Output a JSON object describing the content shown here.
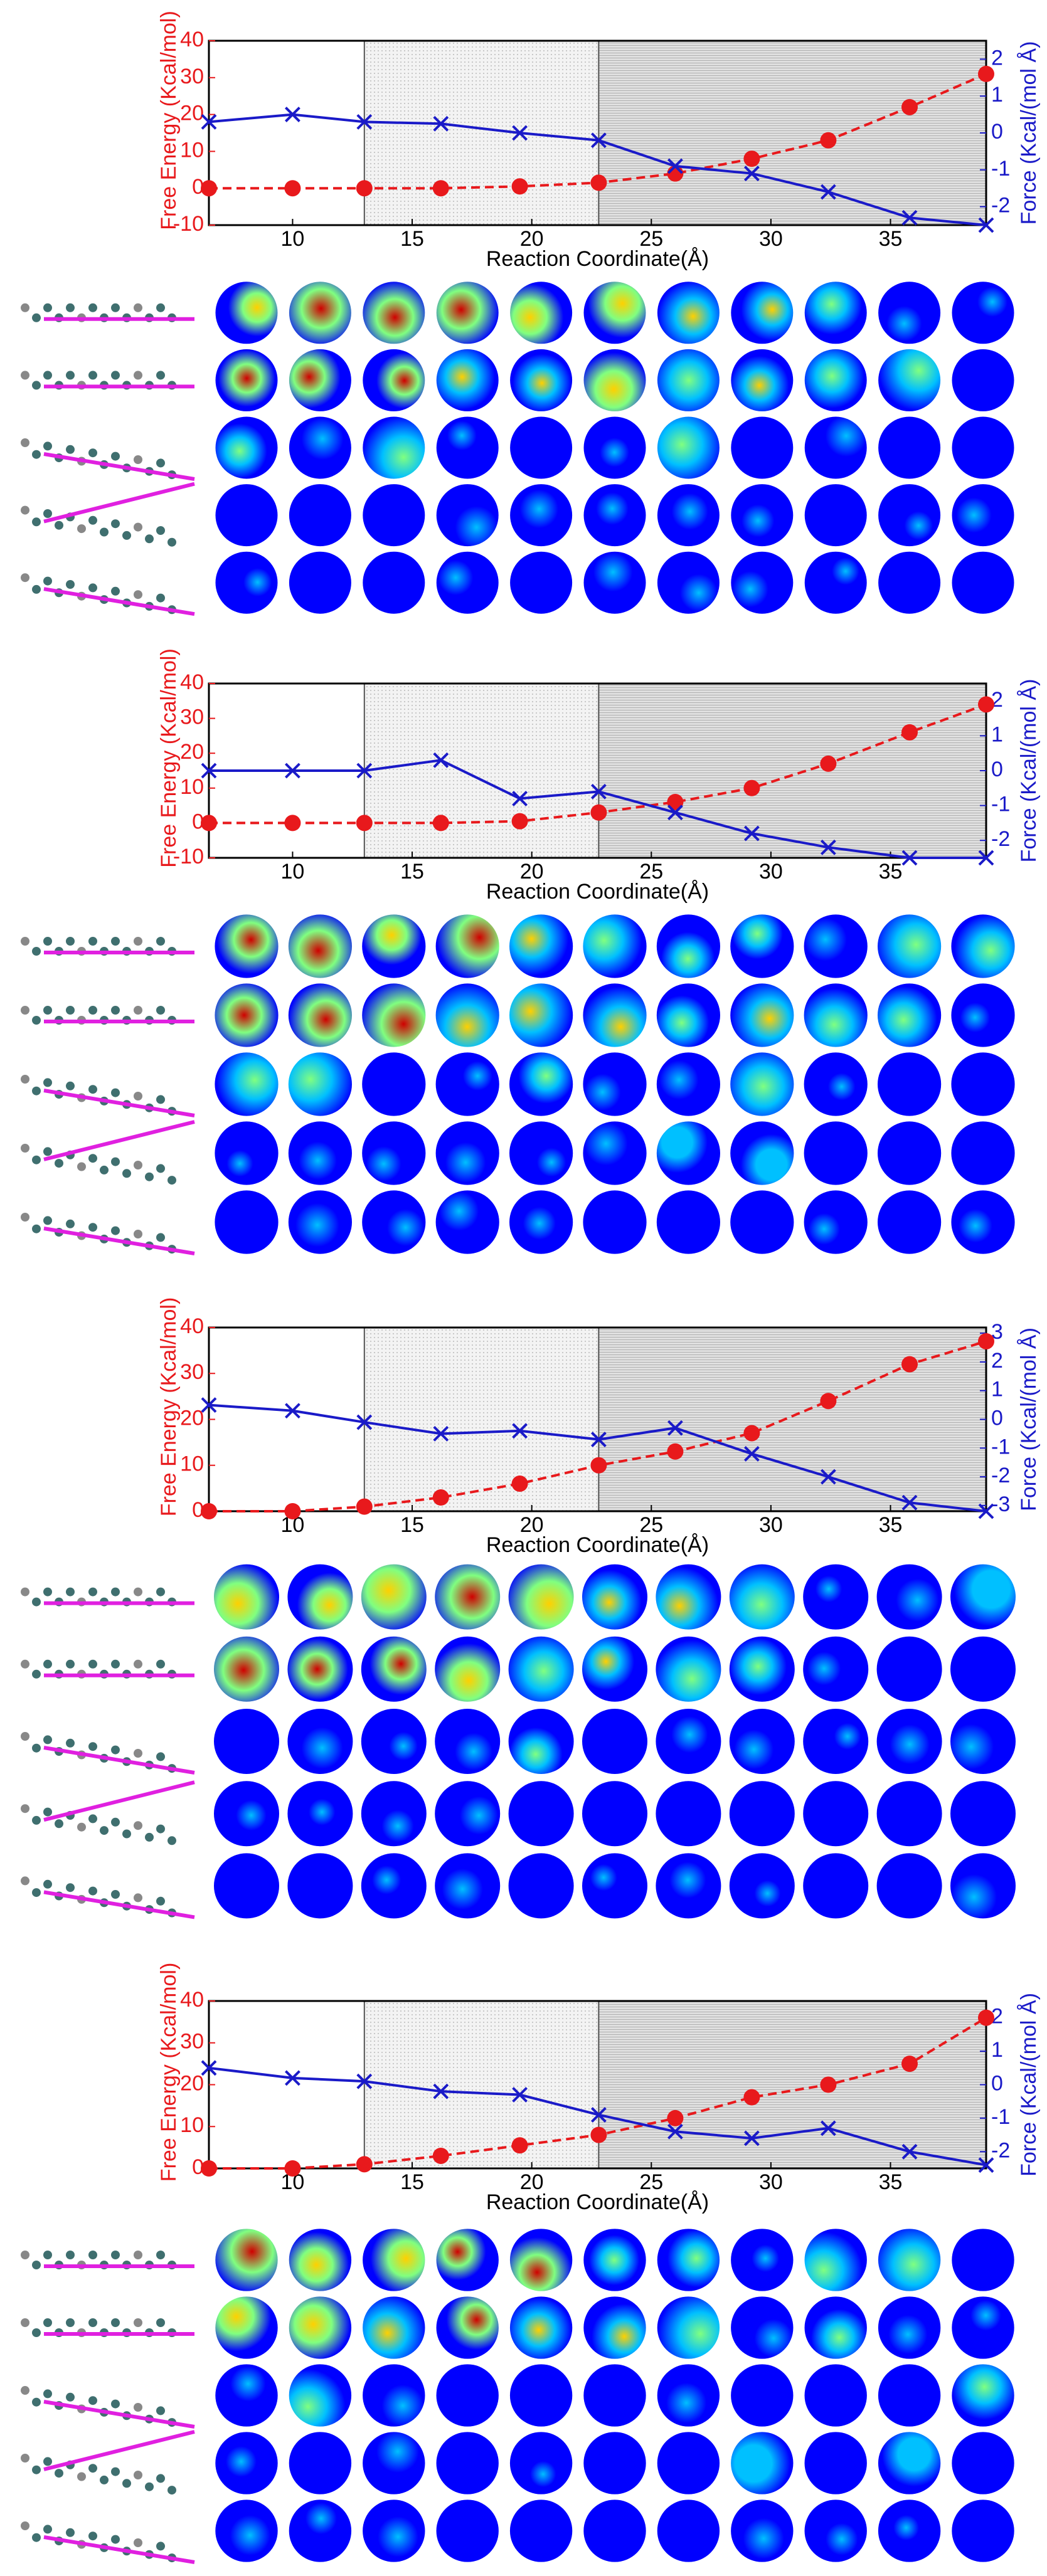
{
  "chart_data": [
    {
      "type": "line",
      "xlabel": "Reaction Coordinate(Å)",
      "ylabel": "Free Energy (Kcal/mol)",
      "y2label": "Force (Kcal/(mol Å)",
      "x": [
        6.5,
        10,
        13,
        16.2,
        19.5,
        22.8,
        26,
        29.2,
        32.4,
        35.8,
        39
      ],
      "bands": [
        [
          13,
          22.8
        ],
        [
          22.8,
          39
        ]
      ],
      "series": [
        {
          "color": "#e8191c",
          "values": [
            0,
            0,
            0,
            0,
            0.5,
            1.5,
            4,
            8,
            13,
            22,
            31
          ]
        },
        {
          "color": "#1a1ac8",
          "axis": "y2",
          "values": [
            0.3,
            0.5,
            0.3,
            0.25,
            0,
            -0.2,
            -0.9,
            -1.1,
            -1.6,
            -2.3,
            -2.5
          ]
        }
      ],
      "xlim": [
        6.5,
        39
      ],
      "xticks": [
        10,
        15,
        20,
        25,
        30,
        35
      ],
      "ylim": [
        -10,
        40
      ],
      "yticks": [
        -10,
        0,
        10,
        20,
        30,
        40
      ],
      "y2lim": [
        -2.5,
        2.5
      ],
      "y2ticks": [
        -2,
        -1,
        0,
        1,
        2
      ]
    },
    {
      "type": "line",
      "xlabel": "Reaction Coordinate(Å)",
      "ylabel": "Free Energy (Kcal/mol)",
      "y2label": "Force (Kcal/(mol Å)",
      "x": [
        6.5,
        10,
        13,
        16.2,
        19.5,
        22.8,
        26,
        29.2,
        32.4,
        35.8,
        39
      ],
      "bands": [
        [
          13,
          22.8
        ],
        [
          22.8,
          39
        ]
      ],
      "series": [
        {
          "color": "#e8191c",
          "values": [
            0,
            0,
            0,
            0,
            0.5,
            3,
            6,
            10,
            17,
            26,
            34
          ]
        },
        {
          "color": "#1a1ac8",
          "axis": "y2",
          "values": [
            0,
            0,
            0,
            0.3,
            -0.8,
            -0.6,
            -1.2,
            -1.8,
            -2.2,
            -2.5,
            -2.5
          ]
        }
      ],
      "xlim": [
        6.5,
        39
      ],
      "xticks": [
        10,
        15,
        20,
        25,
        30,
        35
      ],
      "ylim": [
        -10,
        40
      ],
      "yticks": [
        -10,
        0,
        10,
        20,
        30,
        40
      ],
      "y2lim": [
        -2.5,
        2.5
      ],
      "y2ticks": [
        -2,
        -1,
        0,
        1,
        2
      ]
    },
    {
      "type": "line",
      "xlabel": "Reaction Coordinate(Å)",
      "ylabel": "Free Energy (Kcal/mol)",
      "y2label": "Force (Kcal/(mol Å)",
      "x": [
        6.5,
        10,
        13,
        16.2,
        19.5,
        22.8,
        26,
        29.2,
        32.4,
        35.8,
        39
      ],
      "bands": [
        [
          13,
          22.8
        ],
        [
          22.8,
          39
        ]
      ],
      "series": [
        {
          "color": "#e8191c",
          "values": [
            0,
            0,
            1,
            3,
            6,
            10,
            13,
            17,
            24,
            32,
            37
          ]
        },
        {
          "color": "#1a1ac8",
          "axis": "y2",
          "values": [
            0.5,
            0.3,
            -0.1,
            -0.5,
            -0.4,
            -0.7,
            -0.3,
            -1.2,
            -2,
            -2.9,
            -3.2
          ]
        }
      ],
      "xlim": [
        6.5,
        39
      ],
      "xticks": [
        10,
        15,
        20,
        25,
        30,
        35
      ],
      "ylim": [
        0,
        40
      ],
      "yticks": [
        0,
        10,
        20,
        30,
        40
      ],
      "y2lim": [
        -3.2,
        3.2
      ],
      "y2ticks": [
        -3,
        -2,
        -1,
        0,
        1,
        2,
        3
      ]
    },
    {
      "type": "line",
      "xlabel": "Reaction Coordinate(Å)",
      "ylabel": "Free Energy (Kcal/mol)",
      "y2label": "Force (Kcal/(mol Å)",
      "x": [
        6.5,
        10,
        13,
        16.2,
        19.5,
        22.8,
        26,
        29.2,
        32.4,
        35.8,
        39
      ],
      "bands": [
        [
          13,
          22.8
        ],
        [
          22.8,
          39
        ]
      ],
      "series": [
        {
          "color": "#e8191c",
          "values": [
            0,
            0,
            1,
            3,
            5.5,
            8,
            12,
            17,
            20,
            25,
            36
          ]
        },
        {
          "color": "#1a1ac8",
          "axis": "y2",
          "values": [
            0.5,
            0.2,
            0.1,
            -0.2,
            -0.3,
            -0.9,
            -1.4,
            -1.6,
            -1.3,
            -2,
            -2.4
          ]
        }
      ],
      "xlim": [
        6.5,
        39
      ],
      "xticks": [
        10,
        15,
        20,
        25,
        30,
        35
      ],
      "ylim": [
        0,
        40
      ],
      "yticks": [
        0,
        10,
        20,
        30,
        40
      ],
      "y2lim": [
        -2.5,
        2.5
      ],
      "y2ticks": [
        -2,
        -1,
        0,
        1,
        2
      ]
    }
  ]
}
